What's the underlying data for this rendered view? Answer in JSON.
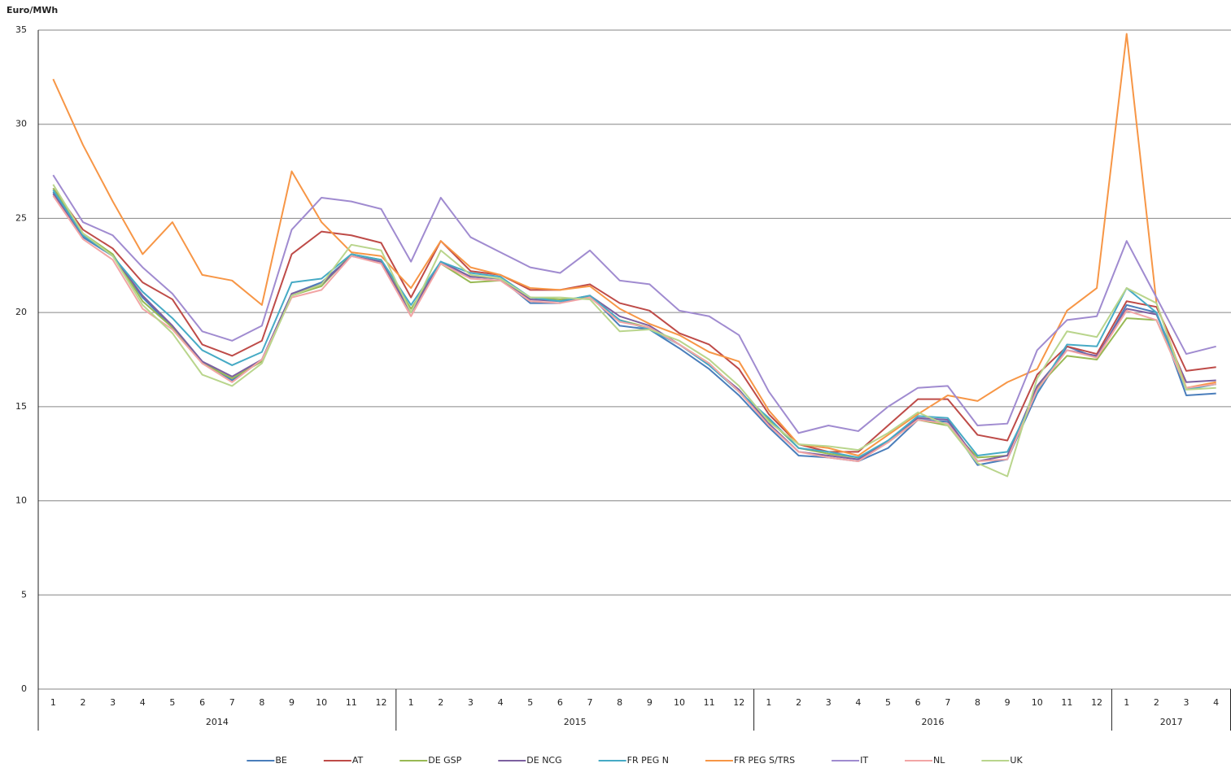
{
  "chart_data": {
    "type": "line",
    "y_axis_label": "Euro/MWh",
    "categories": [
      "1",
      "2",
      "3",
      "4",
      "5",
      "6",
      "7",
      "8",
      "9",
      "10",
      "11",
      "12",
      "1",
      "2",
      "3",
      "4",
      "5",
      "6",
      "7",
      "8",
      "9",
      "10",
      "11",
      "12",
      "1",
      "2",
      "3",
      "4",
      "5",
      "6",
      "7",
      "8",
      "9",
      "10",
      "11",
      "12",
      "1",
      "2",
      "3",
      "4"
    ],
    "years": [
      "2014",
      "2015",
      "2016",
      "2017"
    ],
    "ylim": [
      0,
      35
    ],
    "yticks": [
      0,
      5,
      10,
      15,
      20,
      25,
      30,
      35
    ],
    "grid": true,
    "legend": "bottom",
    "series": [
      {
        "name": "BE",
        "color": "#4a7ebb",
        "values": [
          26.4,
          24.0,
          23.0,
          20.8,
          19.2,
          17.4,
          16.4,
          17.5,
          21.0,
          21.6,
          23.0,
          22.7,
          20.0,
          22.7,
          21.9,
          21.8,
          20.5,
          20.5,
          20.9,
          19.3,
          19.1,
          18.1,
          17.0,
          15.6,
          13.9,
          12.4,
          12.3,
          12.1,
          12.8,
          14.3,
          14.2,
          11.9,
          12.2,
          15.7,
          18.2,
          17.6,
          20.4,
          20.0,
          15.6,
          15.7
        ]
      },
      {
        "name": "AT",
        "color": "#be4b48",
        "values": [
          26.6,
          24.4,
          23.4,
          21.6,
          20.7,
          18.3,
          17.7,
          18.5,
          23.1,
          24.3,
          24.1,
          23.7,
          20.8,
          23.8,
          22.2,
          22.0,
          21.2,
          21.2,
          21.5,
          20.5,
          20.1,
          18.9,
          18.3,
          17.0,
          14.6,
          13.0,
          12.6,
          12.6,
          14.0,
          15.4,
          15.4,
          13.5,
          13.2,
          16.7,
          18.2,
          17.8,
          20.6,
          20.3,
          16.9,
          17.1
        ]
      },
      {
        "name": "DE GSP",
        "color": "#98b954",
        "values": [
          26.6,
          24.2,
          23.1,
          20.6,
          19.2,
          17.3,
          16.5,
          17.4,
          20.9,
          21.4,
          23.1,
          22.8,
          20.2,
          22.6,
          21.6,
          21.7,
          20.8,
          20.7,
          20.8,
          19.6,
          19.2,
          18.3,
          17.3,
          15.8,
          14.3,
          12.8,
          12.5,
          12.3,
          13.1,
          14.3,
          14.0,
          12.3,
          12.4,
          16.0,
          17.7,
          17.5,
          19.7,
          19.6,
          16.0,
          16.2
        ]
      },
      {
        "name": "DE NCG",
        "color": "#7d60a0",
        "values": [
          26.3,
          24.1,
          23.0,
          20.9,
          19.3,
          17.4,
          16.6,
          17.5,
          21.0,
          21.5,
          23.0,
          22.7,
          20.0,
          22.7,
          21.9,
          21.8,
          20.7,
          20.6,
          20.9,
          19.8,
          19.3,
          18.3,
          17.2,
          15.9,
          14.1,
          12.6,
          12.4,
          12.2,
          13.2,
          14.4,
          14.3,
          12.1,
          12.4,
          16.1,
          18.0,
          17.7,
          20.2,
          19.9,
          16.3,
          16.4
        ]
      },
      {
        "name": "FR PEG N",
        "color": "#46aac5",
        "values": [
          26.5,
          24.1,
          23.0,
          21.1,
          19.7,
          18.0,
          17.2,
          17.9,
          21.6,
          21.8,
          23.1,
          22.8,
          20.4,
          22.7,
          22.1,
          21.9,
          20.8,
          20.6,
          20.9,
          19.6,
          19.1,
          18.3,
          17.2,
          15.8,
          14.4,
          12.8,
          12.6,
          12.3,
          13.2,
          14.5,
          14.4,
          12.4,
          12.6,
          15.8,
          18.3,
          18.2,
          21.3,
          20.0,
          15.9,
          16.2
        ]
      },
      {
        "name": "FR PEG S/TRS",
        "color": "#f79646",
        "values": [
          32.4,
          28.9,
          25.9,
          23.1,
          24.8,
          22.0,
          21.7,
          20.4,
          27.5,
          24.8,
          23.2,
          23.0,
          21.3,
          23.8,
          22.4,
          22.0,
          21.3,
          21.2,
          21.4,
          20.2,
          19.4,
          18.8,
          17.9,
          17.4,
          14.8,
          13.0,
          12.8,
          12.4,
          13.5,
          14.6,
          15.6,
          15.3,
          16.3,
          17.0,
          20.1,
          21.3,
          34.8,
          20.5,
          16.0,
          16.3
        ]
      },
      {
        "name": "IT",
        "color": "#a08bd0",
        "values": [
          27.3,
          24.8,
          24.1,
          22.4,
          21.0,
          19.0,
          18.5,
          19.3,
          24.4,
          26.1,
          25.9,
          25.5,
          22.7,
          26.1,
          24.0,
          23.2,
          22.4,
          22.1,
          23.3,
          21.7,
          21.5,
          20.1,
          19.8,
          18.8,
          15.8,
          13.6,
          14.0,
          13.7,
          15.0,
          16.0,
          16.1,
          14.0,
          14.1,
          18.0,
          19.6,
          19.8,
          23.8,
          20.8,
          17.8,
          18.2
        ]
      },
      {
        "name": "NL",
        "color": "#f2a5a5",
        "values": [
          26.2,
          23.9,
          22.8,
          20.2,
          19.1,
          17.3,
          16.3,
          17.5,
          20.8,
          21.2,
          23.0,
          22.6,
          19.8,
          22.6,
          21.8,
          21.7,
          20.6,
          20.5,
          20.8,
          19.5,
          19.2,
          18.3,
          17.3,
          15.8,
          14.0,
          12.6,
          12.3,
          12.1,
          13.1,
          14.3,
          14.1,
          12.1,
          12.2,
          15.9,
          18.0,
          17.6,
          20.1,
          19.6,
          16.0,
          16.2
        ]
      },
      {
        "name": "UK",
        "color": "#b9d58c",
        "values": [
          26.8,
          24.2,
          23.0,
          20.4,
          18.9,
          16.7,
          16.1,
          17.3,
          20.9,
          21.5,
          23.6,
          23.3,
          20.0,
          23.3,
          22.0,
          21.8,
          20.8,
          20.8,
          20.7,
          19.0,
          19.1,
          18.5,
          17.5,
          16.1,
          14.2,
          13.0,
          12.9,
          12.7,
          13.6,
          14.7,
          14.0,
          12.0,
          11.3,
          16.5,
          19.0,
          18.7,
          21.3,
          20.5,
          15.9,
          16.0
        ]
      }
    ]
  }
}
